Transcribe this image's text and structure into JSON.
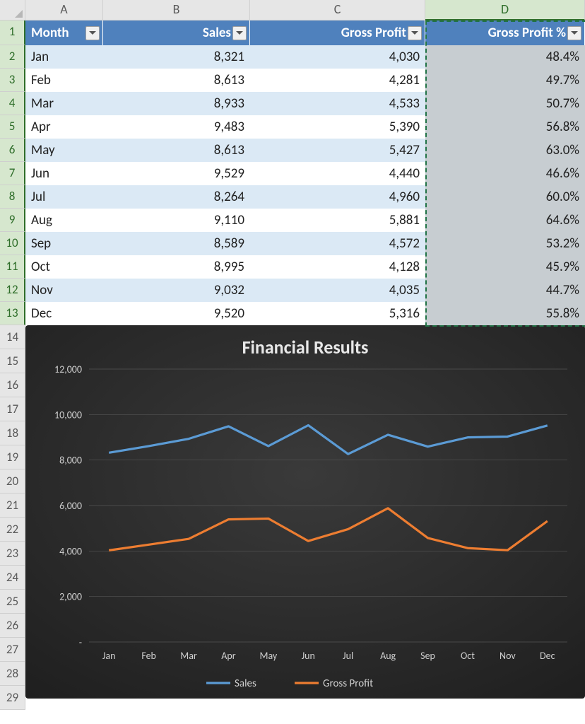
{
  "columns": {
    "letters": [
      "A",
      "B",
      "C",
      "D"
    ],
    "selected_index": 3
  },
  "table": {
    "header_bg": "#4f81bd",
    "header_fg": "#ffffff",
    "stripe_a": "#dbe9f5",
    "stripe_b": "#ffffff",
    "selection_fill": "#c7cdd1",
    "selection_border": "#217346",
    "headers": [
      "Month",
      "Sales",
      "Gross Profit",
      "Gross Profit %"
    ],
    "header_align": [
      "left",
      "right",
      "right",
      "right"
    ],
    "data_align": [
      "left",
      "right",
      "right",
      "right"
    ],
    "rows": [
      {
        "month": "Jan",
        "sales": "8,321",
        "gross_profit": "4,030",
        "gp_pct": "48.4%"
      },
      {
        "month": "Feb",
        "sales": "8,613",
        "gross_profit": "4,281",
        "gp_pct": "49.7%"
      },
      {
        "month": "Mar",
        "sales": "8,933",
        "gross_profit": "4,533",
        "gp_pct": "50.7%"
      },
      {
        "month": "Apr",
        "sales": "9,483",
        "gross_profit": "5,390",
        "gp_pct": "56.8%"
      },
      {
        "month": "May",
        "sales": "8,613",
        "gross_profit": "5,427",
        "gp_pct": "63.0%"
      },
      {
        "month": "Jun",
        "sales": "9,529",
        "gross_profit": "4,440",
        "gp_pct": "46.6%"
      },
      {
        "month": "Jul",
        "sales": "8,264",
        "gross_profit": "4,960",
        "gp_pct": "60.0%"
      },
      {
        "month": "Aug",
        "sales": "9,110",
        "gross_profit": "5,881",
        "gp_pct": "64.6%"
      },
      {
        "month": "Sep",
        "sales": "8,589",
        "gross_profit": "4,572",
        "gp_pct": "53.2%"
      },
      {
        "month": "Oct",
        "sales": "8,995",
        "gross_profit": "4,128",
        "gp_pct": "45.9%"
      },
      {
        "month": "Nov",
        "sales": "9,032",
        "gross_profit": "4,035",
        "gp_pct": "44.7%"
      },
      {
        "month": "Dec",
        "sales": "9,520",
        "gross_profit": "5,316",
        "gp_pct": "55.8%"
      }
    ]
  },
  "row_numbers": {
    "count": 29,
    "selected": [
      1,
      2,
      3,
      4,
      5,
      6,
      7,
      8,
      9,
      10,
      11,
      12,
      13
    ]
  },
  "chart": {
    "type": "line",
    "title": "Financial Results",
    "title_fontsize": 26,
    "title_color": "#e8e8e8",
    "background_gradient": {
      "top": "#3a3a3a",
      "bottom": "#1e1e1e"
    },
    "plot_inner_start": "#303030",
    "grid_color": "#555555",
    "axis_label_color": "#cfcfcf",
    "axis_fontsize": 14,
    "line_width": 3.2,
    "ylim": [
      0,
      12000
    ],
    "ytick_step": 2000,
    "ytick_labels": [
      "-",
      "2,000",
      "4,000",
      "6,000",
      "8,000",
      "10,000",
      "12,000"
    ],
    "x_categories": [
      "Jan",
      "Feb",
      "Mar",
      "Apr",
      "May",
      "Jun",
      "Jul",
      "Aug",
      "Sep",
      "Oct",
      "Nov",
      "Dec"
    ],
    "series": [
      {
        "name": "Sales",
        "color": "#5b9bd5",
        "values": [
          8321,
          8613,
          8933,
          9483,
          8613,
          9529,
          8264,
          9110,
          8589,
          8995,
          9032,
          9520
        ]
      },
      {
        "name": "Gross Profit",
        "color": "#ed7d31",
        "values": [
          4030,
          4281,
          4533,
          5390,
          5427,
          4440,
          4960,
          5881,
          4572,
          4128,
          4035,
          5316
        ]
      }
    ],
    "legend_fontsize": 15,
    "legend_color": "#cfcfcf"
  }
}
